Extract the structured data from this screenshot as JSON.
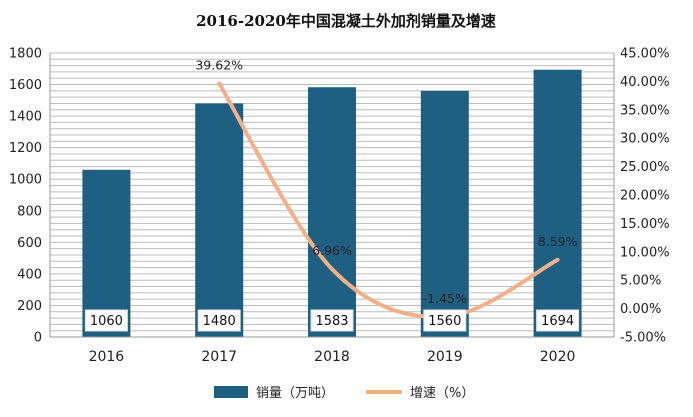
{
  "chart_data": {
    "type": "bar",
    "title": "2016-2020年中国混凝土外加剂销量及增速",
    "categories": [
      "2016",
      "2017",
      "2018",
      "2019",
      "2020"
    ],
    "series": [
      {
        "name": "销量（万吨）",
        "type": "bar",
        "axis": "left",
        "values": [
          1060,
          1480,
          1583,
          1560,
          1694
        ],
        "labels": [
          "1060",
          "1480",
          "1583",
          "1560",
          "1694"
        ],
        "color": "#1f5f82"
      },
      {
        "name": "增速（%）",
        "type": "line",
        "axis": "right",
        "values": [
          null,
          39.62,
          6.96,
          -1.45,
          8.59
        ],
        "labels": [
          "",
          "39.62%",
          "6.96%",
          "-1.45%",
          "8.59%"
        ],
        "color": "#f2b08a"
      }
    ],
    "ylim_left": [
      0,
      1800
    ],
    "yticks_left": [
      "0",
      "200",
      "400",
      "600",
      "800",
      "1000",
      "1200",
      "1400",
      "1600",
      "1800"
    ],
    "ylim_right": [
      -5,
      45
    ],
    "yticks_right": [
      "-5.00%",
      "0.00%",
      "5.00%",
      "10.00%",
      "15.00%",
      "20.00%",
      "25.00%",
      "30.00%",
      "35.00%",
      "40.00%",
      "45.00%"
    ],
    "grid": true,
    "legend": "bottom"
  }
}
